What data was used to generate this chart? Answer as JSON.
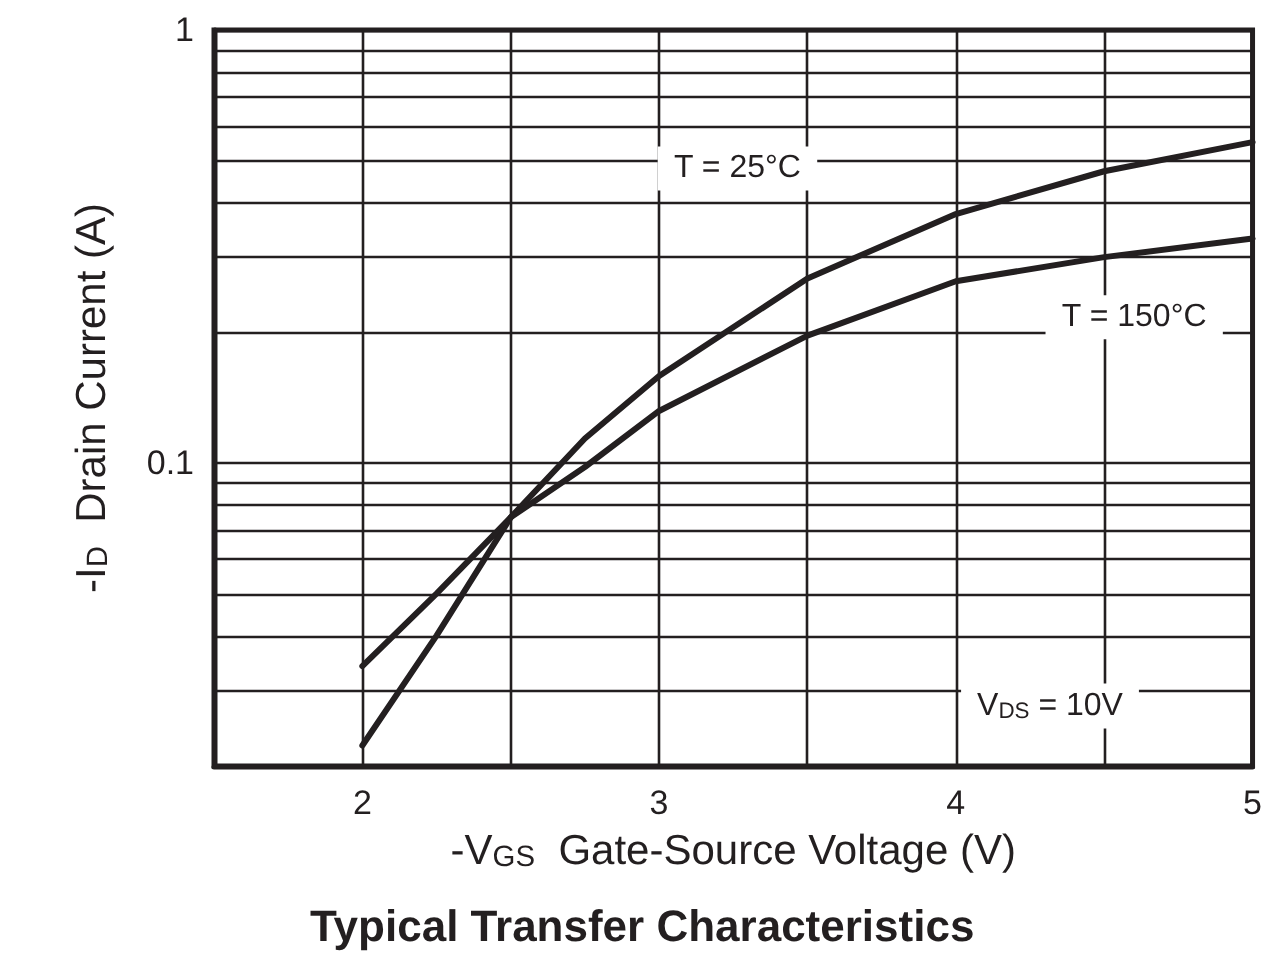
{
  "chart_data": {
    "type": "line",
    "title": "Typical Transfer Characteristics",
    "xlabel": "-V$_{GS}$  Gate-Source Voltage (V)",
    "ylabel": "-I$_{D}$  Drain Current (A)",
    "log": "y",
    "xlim": [
      1.5,
      5
    ],
    "ylim": [
      0.02,
      1
    ],
    "xticks": [
      2,
      {
        "value": 2.5,
        "label": null
      },
      3,
      {
        "value": 3.5,
        "label": null
      },
      4,
      {
        "value": 4.5,
        "label": null
      },
      5
    ],
    "yticks": [
      {
        "value": 0.03,
        "label": null
      },
      {
        "value": 0.04,
        "label": null
      },
      {
        "value": 0.05,
        "label": null
      },
      {
        "value": 0.06,
        "label": null
      },
      {
        "value": 0.07,
        "label": null
      },
      {
        "value": 0.08,
        "label": null
      },
      {
        "value": 0.09,
        "label": null
      },
      0.1,
      {
        "value": 0.2,
        "label": null
      },
      {
        "value": 0.3,
        "label": null
      },
      {
        "value": 0.4,
        "label": null
      },
      {
        "value": 0.5,
        "label": null
      },
      {
        "value": 0.6,
        "label": null
      },
      {
        "value": 0.7,
        "label": null
      },
      {
        "value": 0.8,
        "label": null
      },
      {
        "value": 0.9,
        "label": null
      },
      1
    ],
    "grid": true,
    "legend": false,
    "marker": "none",
    "line_style": "solid",
    "series": [
      {
        "name": "T = 25°C",
        "color": "#231f20",
        "x": [
          2,
          2.25,
          2.5,
          2.75,
          3,
          3.5,
          4,
          4.5,
          5
        ],
        "values": [
          0.0223,
          0.04,
          0.075,
          0.114,
          0.159,
          0.267,
          0.376,
          0.472,
          0.551
        ]
      },
      {
        "name": "T = 150°C",
        "color": "#231f20",
        "x": [
          2,
          2.25,
          2.5,
          2.75,
          3,
          3.5,
          4,
          4.5,
          5
        ],
        "values": [
          0.034,
          0.05,
          0.075,
          0.098,
          0.132,
          0.197,
          0.263,
          0.299,
          0.33
        ]
      }
    ],
    "annotations": [
      "V$_{DS}$ = 10V"
    ]
  }
}
